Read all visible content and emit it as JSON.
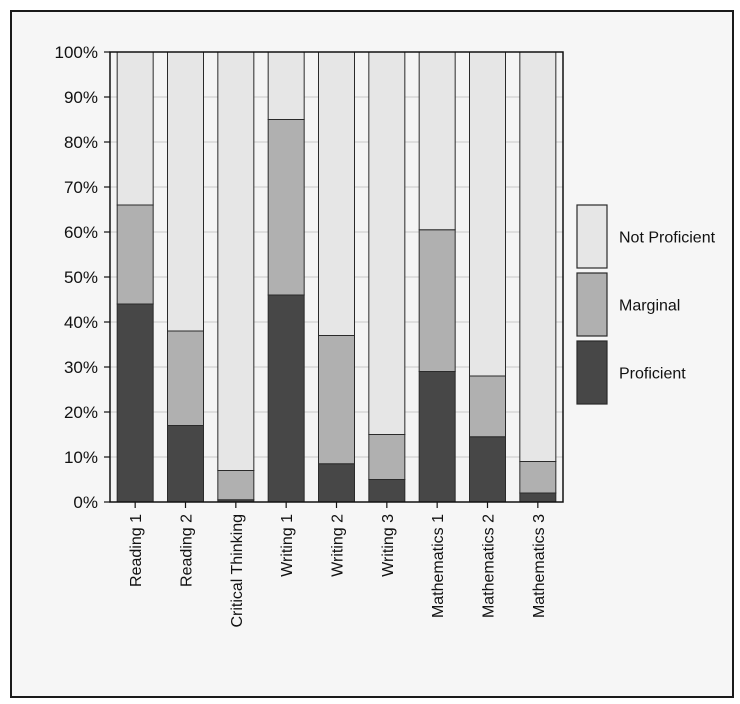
{
  "chart_data": {
    "type": "bar",
    "stacked": true,
    "categories": [
      "Reading 1",
      "Reading 2",
      "Critical Thinking",
      "Writing 1",
      "Writing 2",
      "Writing 3",
      "Mathematics 1",
      "Mathematics 2",
      "Mathematics 3"
    ],
    "series": [
      {
        "name": "Proficient",
        "color": "#474747",
        "values": [
          44,
          17,
          0.5,
          46,
          8.5,
          5,
          29,
          14.5,
          2
        ]
      },
      {
        "name": "Marginal",
        "color": "#b0b0b0",
        "values": [
          22,
          21,
          6.5,
          39,
          28.5,
          10,
          31.5,
          13.5,
          7
        ]
      },
      {
        "name": "Not Proficient",
        "color": "#e6e6e6",
        "values": [
          34,
          62,
          93,
          15,
          63,
          85,
          39.5,
          72,
          91
        ]
      }
    ],
    "legend_order": [
      "Not Proficient",
      "Marginal",
      "Proficient"
    ],
    "ylim": [
      0,
      100
    ],
    "yticks": [
      "0%",
      "10%",
      "20%",
      "30%",
      "40%",
      "50%",
      "60%",
      "70%",
      "80%",
      "90%",
      "100%"
    ],
    "grid": true,
    "legend_position": "right"
  }
}
